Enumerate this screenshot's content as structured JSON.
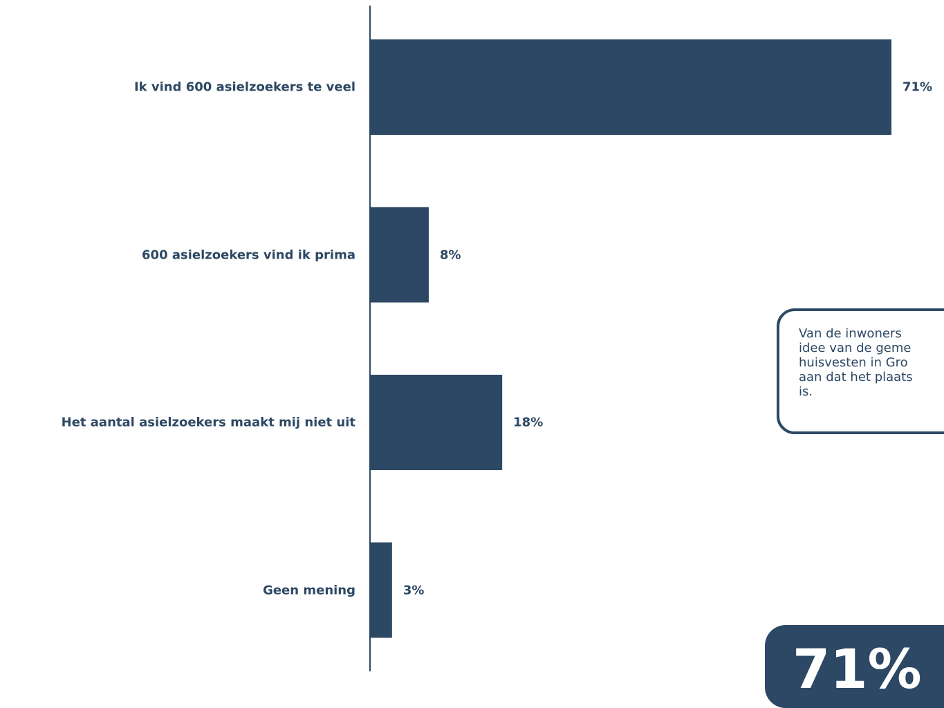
{
  "colors": {
    "bar": "#2d4864",
    "text": "#2d4864",
    "axis": "#2d4864"
  },
  "chart_data": {
    "type": "bar",
    "orientation": "horizontal",
    "categories": [
      "Ik vind 600 asielzoekers te veel",
      "600 asielzoekers vind ik prima",
      "Het aantal asielzoekers maakt mij niet uit",
      "Geen mening"
    ],
    "values": [
      71,
      8,
      18,
      3
    ],
    "value_labels": [
      "71%",
      "8%",
      "18%",
      "3%"
    ],
    "unit": "%",
    "xlim": [
      0,
      71
    ],
    "grid": false,
    "legend": "none"
  },
  "callout": {
    "text": "Van de inwoners\nidee van de geme\nhuisvesten in Gro\naan dat het plaats\nis."
  },
  "highlight": {
    "value": "71%"
  }
}
